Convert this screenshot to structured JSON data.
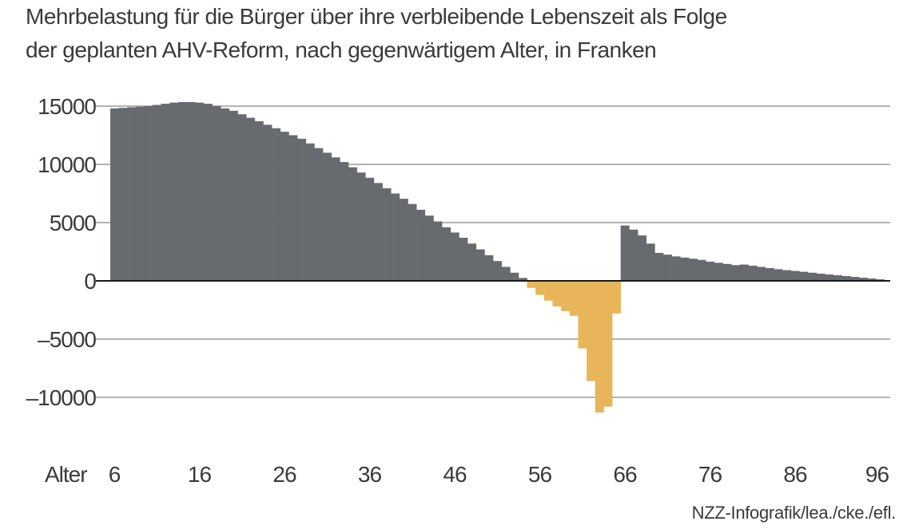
{
  "chart_data": {
    "type": "bar",
    "title_line1": "Mehrbelastung für die Bürger über ihre verbleibende Lebenszeit als Folge",
    "title_line2": "der geplanten AHV-Reform, nach gegenwärtigem Alter, in Franken",
    "xlabel": "Alter",
    "ylim": [
      -12000,
      16000
    ],
    "x_ticks": [
      "6",
      "16",
      "26",
      "36",
      "46",
      "56",
      "66",
      "76",
      "86",
      "96"
    ],
    "y_ticks": [
      {
        "value": 15000,
        "label": "15000"
      },
      {
        "value": 10000,
        "label": "10000"
      },
      {
        "value": 5000,
        "label": "5000"
      },
      {
        "value": 0,
        "label": "0"
      },
      {
        "value": -5000,
        "label": "–5000"
      },
      {
        "value": -10000,
        "label": "–10000"
      }
    ],
    "x": [
      6,
      7,
      8,
      9,
      10,
      11,
      12,
      13,
      14,
      15,
      16,
      17,
      18,
      19,
      20,
      21,
      22,
      23,
      24,
      25,
      26,
      27,
      28,
      29,
      30,
      31,
      32,
      33,
      34,
      35,
      36,
      37,
      38,
      39,
      40,
      41,
      42,
      43,
      44,
      45,
      46,
      47,
      48,
      49,
      50,
      51,
      52,
      53,
      54,
      55,
      56,
      57,
      58,
      59,
      60,
      61,
      62,
      63,
      64,
      65,
      66,
      67,
      68,
      69,
      70,
      71,
      72,
      73,
      74,
      75,
      76,
      77,
      78,
      79,
      80,
      81,
      82,
      83,
      84,
      85,
      86,
      87,
      88,
      89,
      90,
      91,
      92,
      93,
      94,
      95,
      96
    ],
    "values": [
      14800,
      14850,
      14900,
      14950,
      15000,
      15100,
      15200,
      15300,
      15350,
      15350,
      15300,
      15200,
      15000,
      14800,
      14600,
      14300,
      14000,
      13700,
      13400,
      13100,
      12800,
      12500,
      12200,
      11800,
      11400,
      11000,
      10600,
      10200,
      9750,
      9300,
      8850,
      8400,
      7950,
      7500,
      7050,
      6600,
      6100,
      5600,
      5100,
      4600,
      4150,
      3700,
      3200,
      2700,
      2200,
      1700,
      1200,
      700,
      250,
      -600,
      -1200,
      -1700,
      -2200,
      -2600,
      -3000,
      -5800,
      -8600,
      -11300,
      -10800,
      -2800,
      4750,
      4400,
      3900,
      3200,
      2400,
      2250,
      2100,
      2000,
      1900,
      1800,
      1650,
      1550,
      1450,
      1350,
      1400,
      1300,
      1200,
      1100,
      1000,
      920,
      850,
      780,
      700,
      620,
      550,
      480,
      410,
      340,
      270,
      200,
      130
    ],
    "series_colors": {
      "positive": "#676b70",
      "negative": "#e8b55b"
    },
    "grid_color": "#9a9a9a"
  },
  "source": "NZZ-Infografik/lea./cke./efl."
}
